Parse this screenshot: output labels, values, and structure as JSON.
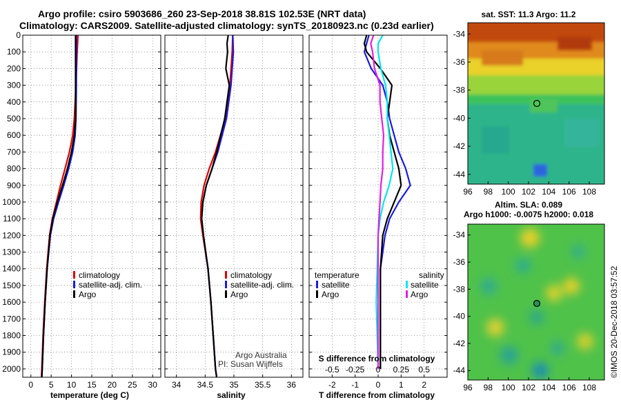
{
  "title_line1": "Argo profile: csiro 5903686_260 23-Sep-2018 38.81S 102.53E (NRT data)",
  "title_line2": "Climatology: CARS2009. Satellite-adjusted climatology: synTS_20180923.nc (0.23d earlier)",
  "credit": "Argo Australia",
  "pi": "PI: Susan Wijffels",
  "watermark": "©IMOS 20-Dec-2018 03:57:52",
  "colors": {
    "climatology": "#e00000",
    "satellite": "#1a1adc",
    "argo": "#000000",
    "sal_sat": "#00e5ee",
    "sal_argo": "#e020e0"
  },
  "chart_data": [
    {
      "type": "line",
      "id": "temperature",
      "xlabel": "temperature (deg C)",
      "xlim": [
        -2,
        32
      ],
      "ylim": [
        2050,
        0
      ],
      "xticks": [
        "0",
        "5",
        "10",
        "15",
        "20",
        "25",
        "30"
      ],
      "yticks": [
        "0",
        "100",
        "200",
        "300",
        "400",
        "500",
        "600",
        "700",
        "800",
        "900",
        "1000",
        "1100",
        "1200",
        "1300",
        "1400",
        "1500",
        "1600",
        "1700",
        "1800",
        "1900",
        "2000"
      ],
      "legend": [
        "climatology",
        "satellite-adj. clim.",
        "Argo"
      ],
      "series": [
        {
          "name": "climatology",
          "depth": [
            0,
            100,
            300,
            500,
            600,
            700,
            800,
            900,
            1000,
            1100,
            1200,
            1400,
            1600,
            1800,
            2000,
            2050
          ],
          "values": [
            11.6,
            11.4,
            11.1,
            10.7,
            10.3,
            9.5,
            8.4,
            7.3,
            6.3,
            5.3,
            4.6,
            3.9,
            3.4,
            3.0,
            2.7,
            2.6
          ]
        },
        {
          "name": "satellite-adj. clim.",
          "depth": [
            0,
            100,
            300,
            500,
            600,
            700,
            800,
            900,
            1000,
            1100,
            1200,
            1400,
            1600,
            1800,
            2000,
            2050
          ],
          "values": [
            11.2,
            11.2,
            11.2,
            11.1,
            10.9,
            10.3,
            9.3,
            8.1,
            6.8,
            5.6,
            4.8,
            4.0,
            3.5,
            3.1,
            2.8,
            2.7
          ]
        },
        {
          "name": "Argo",
          "depth": [
            0,
            100,
            300,
            500,
            600,
            700,
            800,
            900,
            1000,
            1100,
            1200,
            1400,
            1600,
            1800,
            2000,
            2050
          ],
          "values": [
            11.0,
            11.0,
            11.0,
            11.0,
            10.7,
            10.0,
            9.0,
            7.8,
            6.5,
            5.4,
            4.7,
            4.0,
            3.5,
            3.1,
            2.8,
            2.7
          ]
        }
      ]
    },
    {
      "type": "line",
      "id": "salinity",
      "xlabel": "salinity",
      "xlim": [
        33.8,
        36.2
      ],
      "ylim": [
        2050,
        0
      ],
      "xticks": [
        "34",
        "34.5",
        "35",
        "35.5",
        "36"
      ],
      "legend": [
        "climatology",
        "satellite-adj. clim.",
        "Argo"
      ],
      "series": [
        {
          "name": "climatology",
          "depth": [
            0,
            100,
            300,
            500,
            700,
            800,
            900,
            1000,
            1100,
            1200,
            1400,
            1600,
            1800,
            2000,
            2050
          ],
          "values": [
            34.98,
            34.97,
            34.93,
            34.85,
            34.68,
            34.57,
            34.48,
            34.43,
            34.42,
            34.46,
            34.55,
            34.6,
            34.64,
            34.68,
            34.7
          ]
        },
        {
          "name": "satellite-adj. clim.",
          "depth": [
            0,
            100,
            300,
            500,
            700,
            800,
            900,
            1000,
            1100,
            1200,
            1400,
            1600,
            1800,
            2000,
            2050
          ],
          "values": [
            34.98,
            34.99,
            34.95,
            34.87,
            34.72,
            34.62,
            34.52,
            34.46,
            34.44,
            34.47,
            34.55,
            34.6,
            34.64,
            34.68,
            34.7
          ]
        },
        {
          "name": "Argo",
          "depth": [
            0,
            50,
            100,
            200,
            300,
            400,
            500,
            700,
            800,
            900,
            1000,
            1100,
            1200,
            1400,
            1600,
            1800,
            2000,
            2050
          ],
          "values": [
            34.9,
            34.88,
            34.89,
            34.86,
            34.92,
            34.88,
            34.84,
            34.7,
            34.62,
            34.52,
            34.46,
            34.44,
            34.47,
            34.55,
            34.6,
            34.64,
            34.68,
            34.7
          ]
        }
      ]
    },
    {
      "type": "line",
      "id": "differences",
      "xlabel": "T difference from climatology",
      "xlabel_top": "S difference from climatology",
      "xlim": [
        -3,
        3
      ],
      "ylim": [
        2050,
        0
      ],
      "xticks": [
        "-2",
        "-1",
        "0",
        "1",
        "2"
      ],
      "xticks_s": [
        "-0.5",
        "-0.25",
        "0",
        "0.25",
        "0.5"
      ],
      "legend_headers": [
        "temperature",
        "salinity"
      ],
      "legend_left": [
        "satellite",
        "Argo"
      ],
      "legend_right": [
        "satellite",
        "Argo"
      ],
      "series": [
        {
          "name": "T satellite",
          "depth": [
            0,
            50,
            100,
            200,
            300,
            400,
            500,
            600,
            700,
            800,
            900,
            1000,
            1100,
            1200,
            1300,
            1400,
            1600,
            1800,
            2000
          ],
          "values": [
            -0.4,
            -0.5,
            -0.6,
            -0.3,
            0.2,
            0.4,
            0.5,
            0.7,
            0.9,
            1.2,
            1.4,
            0.9,
            0.5,
            0.3,
            0.2,
            0.1,
            0.1,
            0.1,
            0.1
          ]
        },
        {
          "name": "T Argo",
          "depth": [
            0,
            50,
            100,
            200,
            300,
            400,
            500,
            600,
            700,
            800,
            900,
            1000,
            1100,
            1200,
            1300,
            1400,
            1600,
            1800,
            2000
          ],
          "values": [
            -0.5,
            -0.6,
            -0.5,
            0.1,
            0.6,
            0.5,
            0.4,
            0.5,
            0.7,
            0.9,
            1.0,
            0.7,
            0.4,
            0.2,
            0.15,
            0.1,
            0.1,
            0.1,
            0.1
          ]
        },
        {
          "name": "S satellite",
          "depth": [
            0,
            50,
            100,
            200,
            300,
            400,
            500,
            600,
            700,
            800,
            900,
            1000,
            1100,
            1200,
            1400,
            1600,
            1800,
            2000
          ],
          "values": [
            0.05,
            0.0,
            0.0,
            0.03,
            0.08,
            0.1,
            0.1,
            0.12,
            0.14,
            0.16,
            0.12,
            0.06,
            0.02,
            0.0,
            -0.01,
            -0.02,
            -0.01,
            0.0
          ]
        },
        {
          "name": "S Argo",
          "depth": [
            0,
            50,
            100,
            200,
            300,
            400,
            500,
            600,
            700,
            800,
            900,
            1000,
            1100,
            1200,
            1400,
            1600,
            1800,
            2000
          ],
          "values": [
            -0.05,
            -0.08,
            -0.06,
            -0.04,
            0.02,
            0.02,
            0.04,
            0.06,
            0.05,
            0.05,
            0.03,
            0.02,
            0.01,
            0.0,
            0.0,
            0.0,
            0.0,
            0.0
          ]
        }
      ]
    },
    {
      "type": "heatmap",
      "id": "sst_map",
      "title": "sat. SST: 11.3 Argo: 11.2",
      "xticks": [
        "96",
        "98",
        "100",
        "102",
        "104",
        "106",
        "108"
      ],
      "yticks": [
        "-34",
        "-36",
        "-38",
        "-40",
        "-42",
        "-44"
      ],
      "xlim": [
        96,
        109.5
      ],
      "ylim": [
        -44.7,
        -33.2
      ],
      "marker": {
        "lon": 102.53,
        "lat": -38.81
      }
    },
    {
      "type": "heatmap",
      "id": "sla_map",
      "title": "Altim. SLA: 0.089",
      "subtitle": "Argo h1000: -0.0075 h2000: 0.018",
      "xticks": [
        "96",
        "98",
        "100",
        "102",
        "104",
        "106",
        "108"
      ],
      "yticks": [
        "-34",
        "-36",
        "-38",
        "-40",
        "-42",
        "-44"
      ],
      "xlim": [
        96,
        109.5
      ],
      "ylim": [
        -44.7,
        -33.2
      ],
      "marker": {
        "lon": 102.53,
        "lat": -38.81
      }
    }
  ]
}
